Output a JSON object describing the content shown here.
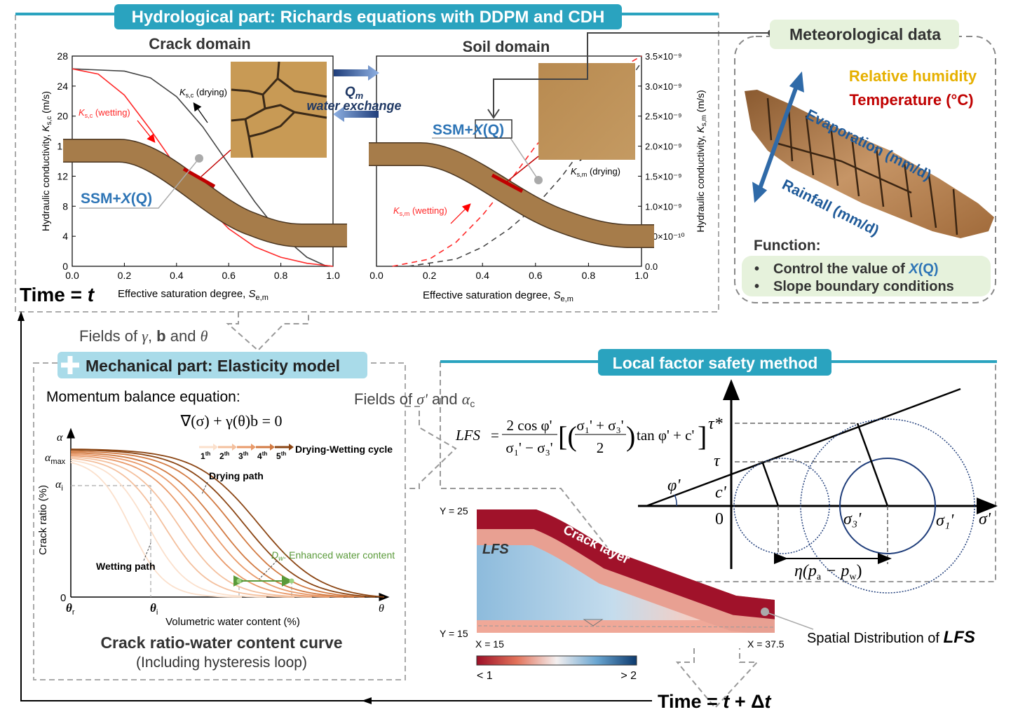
{
  "colors": {
    "teal": "#2aa3bf",
    "light_cyan": "#a9dbe9",
    "light_green": "#e6f2dc",
    "blue_text": "#2e75b6",
    "red": "#ff2a2a",
    "dark_red": "#c00000",
    "gold": "#e6b000",
    "navy": "#1f3864",
    "green": "#5a9a3a",
    "soil": "#a67c4a"
  },
  "hydro": {
    "title": "Hydrological part: Richards equations with DDPM and CDH",
    "crack_domain": "Crack domain",
    "soil_domain": "Soil domain",
    "qm": "Q",
    "qm_sub": "m",
    "water_exchange": "water exchange",
    "time_label": "Time = ",
    "time_var": "t"
  },
  "crack_plot": {
    "xticks": [
      "0.0",
      "0.2",
      "0.4",
      "0.6",
      "0.8",
      "1.0"
    ],
    "yticks": [
      "0",
      "4",
      "8",
      "12",
      "16",
      "20",
      "24",
      "28"
    ],
    "ylim": [
      0,
      28
    ],
    "ylabel": "Hydraulic conductivity, ",
    "ylabel_var": "K",
    "ylabel_sub": "s,c",
    "ylabel_unit": " (m/s)",
    "xlabel": "Effective saturation degree, ",
    "xlabel_var": "S",
    "xlabel_sub": "e,m",
    "wetting_label": {
      "var": "K",
      "sub": "s,c",
      "text": " (wetting)"
    },
    "drying_label": {
      "var": "K",
      "sub": "s,c",
      "text": " (drying)"
    },
    "ssm_label": {
      "text": "SSM+",
      "x": "X",
      "q": "(Q)"
    },
    "wetting_curve": [
      [
        0,
        26.3
      ],
      [
        0.1,
        25.6
      ],
      [
        0.2,
        22.8
      ],
      [
        0.3,
        18.2
      ],
      [
        0.4,
        13.2
      ],
      [
        0.5,
        8.6
      ],
      [
        0.6,
        5.0
      ],
      [
        0.7,
        2.6
      ],
      [
        0.8,
        1.2
      ],
      [
        0.9,
        0.4
      ],
      [
        1.0,
        0
      ]
    ],
    "drying_curve": [
      [
        0,
        26.3
      ],
      [
        0.2,
        26.0
      ],
      [
        0.3,
        25.1
      ],
      [
        0.4,
        22.6
      ],
      [
        0.5,
        18.6
      ],
      [
        0.6,
        13.6
      ],
      [
        0.7,
        8.6
      ],
      [
        0.8,
        4.2
      ],
      [
        0.9,
        1.2
      ],
      [
        0.97,
        0.1
      ],
      [
        1.0,
        0
      ]
    ]
  },
  "soil_plot": {
    "xticks": [
      "0.0",
      "0.2",
      "0.4",
      "0.6",
      "0.8",
      "1.0"
    ],
    "yticks": [
      "0.0",
      "5.0×10⁻¹⁰",
      "1.0×10⁻⁹",
      "1.5×10⁻⁹",
      "2.0×10⁻⁹",
      "2.5×10⁻⁹",
      "3.0×10⁻⁹",
      "3.5×10⁻⁹"
    ],
    "ylim": [
      0,
      3.5e-09
    ],
    "ylabel": "Hydraulic conductivity, ",
    "ylabel_var": "K",
    "ylabel_sub": "s,m",
    "ylabel_unit": " (m/s)",
    "xlabel": "Effective saturation degree, ",
    "xlabel_var": "S",
    "xlabel_sub": "e,m",
    "wetting_label": {
      "var": "K",
      "sub": "s,m",
      "text": " (wetting)"
    },
    "drying_label": {
      "var": "K",
      "sub": "s,m",
      "text": " (drying)"
    },
    "ssm_label": {
      "text": "SSM+",
      "x": "X",
      "q": "(Q)"
    },
    "wetting_curve": [
      [
        0.06,
        0
      ],
      [
        0.2,
        1.2e-10
      ],
      [
        0.3,
        4e-10
      ],
      [
        0.4,
        8.5e-10
      ],
      [
        0.5,
        1.4e-09
      ],
      [
        0.6,
        2e-09
      ],
      [
        0.7,
        2.5e-09
      ],
      [
        0.8,
        2.95e-09
      ],
      [
        0.9,
        3.25e-09
      ],
      [
        1.0,
        3.5e-09
      ]
    ],
    "drying_curve": [
      [
        0.12,
        0
      ],
      [
        0.3,
        1.2e-10
      ],
      [
        0.4,
        3.2e-10
      ],
      [
        0.5,
        6.2e-10
      ],
      [
        0.6,
        1e-09
      ],
      [
        0.7,
        1.5e-09
      ],
      [
        0.8,
        2.1e-09
      ],
      [
        0.9,
        2.75e-09
      ],
      [
        1.0,
        3.4e-09
      ]
    ]
  },
  "meteo": {
    "title": "Meteorological data",
    "humidity": "Relative humidity",
    "temperature": "Temperature (°C)",
    "evaporation": "Evaporation (mm/d)",
    "rainfall": "Rainfall (mm/d)",
    "function_label": "Function:",
    "bullet1_text": "Control  the value of ",
    "bullet1_x": "X",
    "bullet1_q": "(Q)",
    "bullet2": "Slope boundary conditions"
  },
  "fields1": {
    "text": "Fields of ",
    "gamma": "γ",
    ", ": ", ",
    "b": "b",
    "and": " and ",
    "theta": "θ"
  },
  "mech": {
    "title": "Mechanical part: Elasticity model",
    "momentum": "Momentum balance equation:",
    "equation": "∇(σ) + γ(θ)b = 0",
    "chart": {
      "y_axis": "α",
      "alpha_max": "α",
      "alpha_max_sub": "max",
      "alpha_i": "α",
      "alpha_i_sub": "i",
      "zero": "0",
      "theta_r": "θ",
      "theta_r_sub": "r",
      "theta_i": "θ",
      "theta_i_sub": "i",
      "theta": "θ",
      "ylabel": "Crack ratio (%)",
      "xlabel": "Volumetric water content (%)",
      "cycles": [
        "1",
        "2",
        "3",
        "4",
        "5"
      ],
      "cycle_suffix": "th",
      "cycle_colors": [
        "#fbe0cc",
        "#f4c09e",
        "#e99a6a",
        "#d27a42",
        "#8b4513"
      ],
      "legend": "Drying-Wetting cycle",
      "drying_path": "Drying path",
      "wetting_path": "Wetting path",
      "dw_var": "D",
      "dw_sub": "w",
      "dw_text": ": Enhanced water content"
    },
    "caption1": "Crack ratio-water content curve",
    "caption2": "(Including hysteresis loop)"
  },
  "fields2": {
    "text": "Fields of ",
    "sigma": "σ'",
    "and": " and ",
    "alpha": "α",
    "alpha_sub": "c"
  },
  "lfs": {
    "title": "Local factor safety method",
    "formula": {
      "lhs": "LFS",
      "eq": "=",
      "num": "2 cos φ'",
      "den": "σ₁' − σ₃'",
      "inner_num": "σ₁' + σ₃'",
      "inner_den": "2",
      "tail": "tan φ' + c'"
    },
    "mohr": {
      "tau_star": "τ*",
      "tau": "τ",
      "phi": "φ'",
      "c": "c'",
      "zero": "0",
      "sigma3": "σ₃'",
      "sigma1": "σ₁'",
      "sigma": "σ'",
      "eta": "η(p",
      "pa_sub": "a",
      "minus": " − p",
      "pw_sub": "w",
      ")": ")"
    },
    "map": {
      "y_top": "Y = 25",
      "y_bot": "Y = 15",
      "x_left": "X = 15",
      "x_right": "X = 37.5",
      "lfs": "LFS",
      "crack_layer": "Crack layer",
      "cb_min": "< 1",
      "cb_max": "> 2"
    },
    "spatial": "Spatial Distribution of ",
    "spatial_bold": "LFS"
  },
  "time_next": {
    "label": "Time = ",
    "t": "t",
    "plus": " + Δ",
    "t2": "t"
  }
}
